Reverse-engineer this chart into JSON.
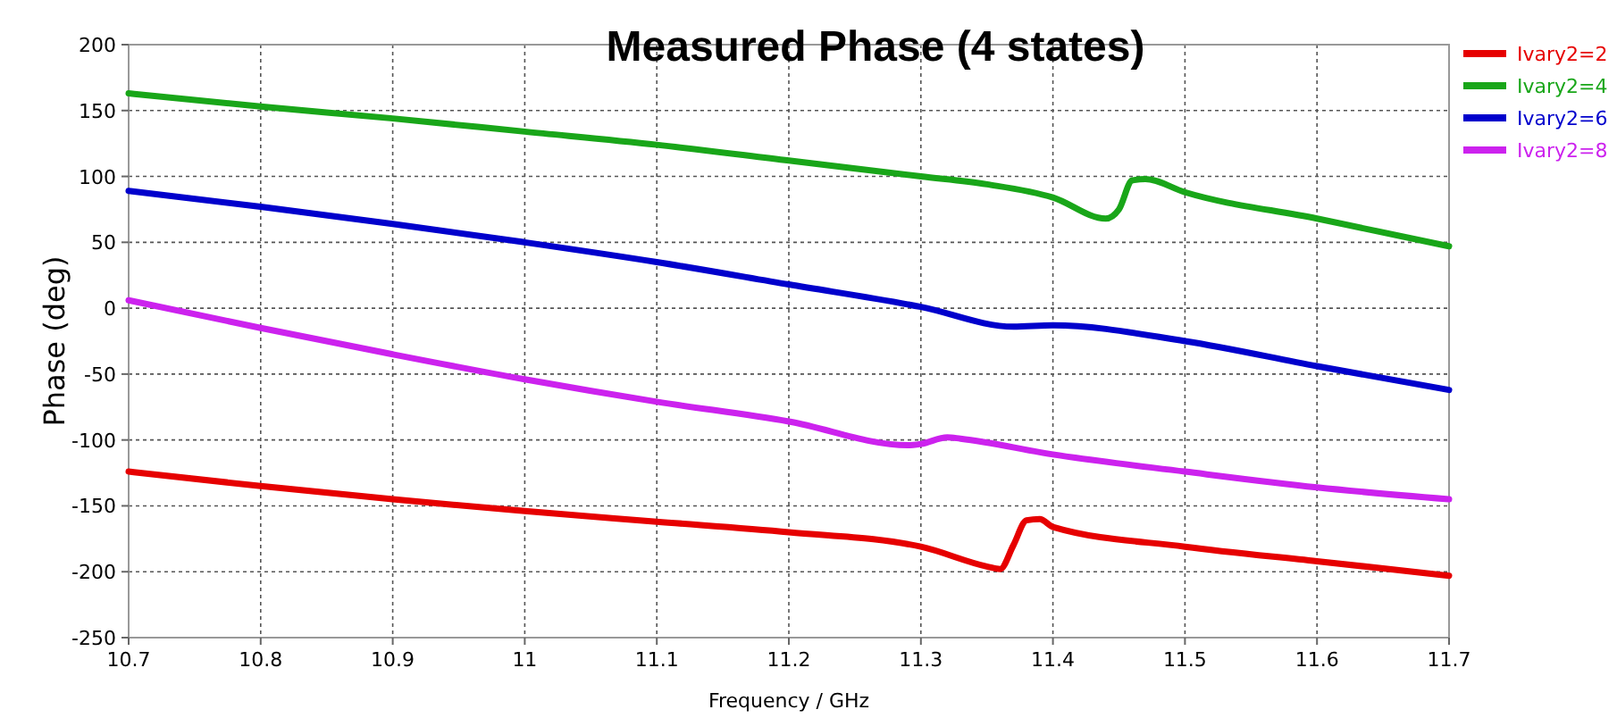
{
  "chart_data": {
    "type": "line",
    "title": "Measured Phase (4 states)",
    "xlabel": "Frequency / GHz",
    "ylabel": "Phase (deg)",
    "xlim": [
      10.7,
      11.7
    ],
    "xticks": [
      10.7,
      10.8,
      10.9,
      11,
      11.1,
      11.2,
      11.3,
      11.4,
      11.5,
      11.6,
      11.7
    ],
    "ylim": [
      -250,
      200
    ],
    "yticks": [
      -250,
      -200,
      -150,
      -100,
      -50,
      0,
      50,
      100,
      150,
      200
    ],
    "grid": true,
    "legend": "right",
    "line_style": "solid",
    "marker": "none",
    "series": [
      {
        "name": "Ivary2=2",
        "color": "#e60000",
        "x": [
          10.7,
          10.8,
          10.9,
          11,
          11.1,
          11.2,
          11.3,
          11.35,
          11.36,
          11.37,
          11.38,
          11.39,
          11.4,
          11.5,
          11.6,
          11.7
        ],
        "values": [
          -124,
          -135,
          -145,
          -154,
          -162,
          -170,
          -181,
          -196,
          -198,
          -180,
          -161,
          -160,
          -166,
          -181,
          -192,
          -203
        ]
      },
      {
        "name": "Ivary2=4",
        "color": "#19a619",
        "x": [
          10.7,
          10.8,
          10.9,
          11,
          11.1,
          11.2,
          11.3,
          11.35,
          11.4,
          11.44,
          11.45,
          11.46,
          11.47,
          11.5,
          11.6,
          11.7
        ],
        "values": [
          163,
          153,
          144,
          134,
          124,
          112,
          100,
          94,
          84,
          68,
          75,
          97,
          98,
          88,
          68,
          47
        ]
      },
      {
        "name": "Ivary2=6",
        "color": "#0000cc",
        "x": [
          10.7,
          10.8,
          10.9,
          11,
          11.1,
          11.2,
          11.3,
          11.37,
          11.4,
          11.5,
          11.6,
          11.7
        ],
        "values": [
          89,
          77,
          64,
          50,
          35,
          18,
          1,
          -14,
          -13,
          -25,
          -44,
          -62
        ]
      },
      {
        "name": "Ivary2=8",
        "color": "#cc22ee",
        "x": [
          10.7,
          10.8,
          10.9,
          11,
          11.1,
          11.2,
          11.29,
          11.3,
          11.32,
          11.33,
          11.4,
          11.5,
          11.6,
          11.7
        ],
        "values": [
          6,
          -15,
          -35,
          -54,
          -71,
          -86,
          -104,
          -103,
          -98,
          -99,
          -111,
          -124,
          -136,
          -145
        ]
      }
    ]
  }
}
